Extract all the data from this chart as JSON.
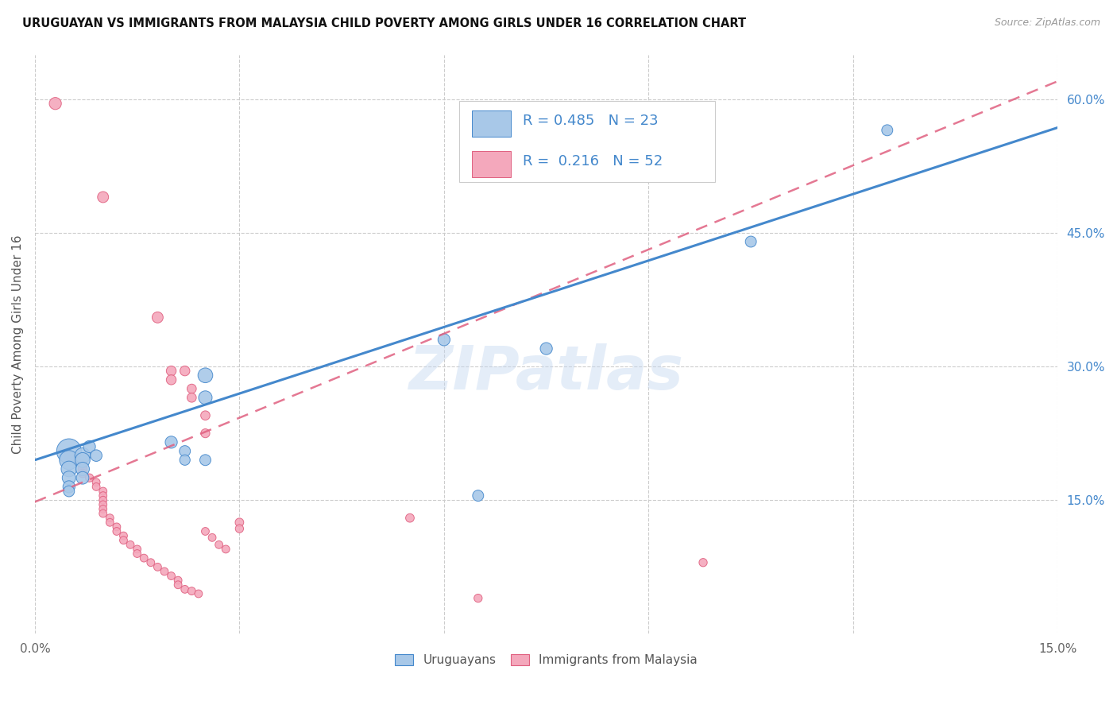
{
  "title": "URUGUAYAN VS IMMIGRANTS FROM MALAYSIA CHILD POVERTY AMONG GIRLS UNDER 16 CORRELATION CHART",
  "source": "Source: ZipAtlas.com",
  "ylabel": "Child Poverty Among Girls Under 16",
  "x_min": 0.0,
  "x_max": 0.15,
  "y_min": 0.0,
  "y_max": 0.65,
  "x_tick_positions": [
    0.0,
    0.03,
    0.06,
    0.09,
    0.12,
    0.15
  ],
  "x_tick_labels": [
    "0.0%",
    "",
    "",
    "",
    "",
    "15.0%"
  ],
  "y_tick_labels_right": [
    "60.0%",
    "45.0%",
    "30.0%",
    "15.0%"
  ],
  "y_ticks_right": [
    0.6,
    0.45,
    0.3,
    0.15
  ],
  "legend_label_blue": "Uruguayans",
  "legend_label_pink": "Immigrants from Malaysia",
  "R_blue": 0.485,
  "N_blue": 23,
  "R_pink": 0.216,
  "N_pink": 52,
  "blue_color": "#a8c8e8",
  "pink_color": "#f4a8bc",
  "blue_line_color": "#4488cc",
  "pink_line_color": "#e06080",
  "text_color_blue": "#4488cc",
  "watermark": "ZIPatlas",
  "blue_points": [
    [
      0.005,
      0.205
    ],
    [
      0.005,
      0.195
    ],
    [
      0.005,
      0.185
    ],
    [
      0.005,
      0.175
    ],
    [
      0.005,
      0.165
    ],
    [
      0.005,
      0.16
    ],
    [
      0.007,
      0.2
    ],
    [
      0.007,
      0.195
    ],
    [
      0.007,
      0.185
    ],
    [
      0.007,
      0.175
    ],
    [
      0.008,
      0.21
    ],
    [
      0.009,
      0.2
    ],
    [
      0.02,
      0.215
    ],
    [
      0.022,
      0.205
    ],
    [
      0.022,
      0.195
    ],
    [
      0.025,
      0.29
    ],
    [
      0.025,
      0.265
    ],
    [
      0.025,
      0.195
    ],
    [
      0.06,
      0.33
    ],
    [
      0.065,
      0.155
    ],
    [
      0.075,
      0.32
    ],
    [
      0.105,
      0.44
    ],
    [
      0.125,
      0.565
    ]
  ],
  "blue_sizes": [
    500,
    300,
    200,
    150,
    120,
    100,
    200,
    180,
    150,
    130,
    120,
    110,
    120,
    100,
    90,
    180,
    150,
    100,
    120,
    100,
    120,
    100,
    100
  ],
  "pink_points": [
    [
      0.003,
      0.595
    ],
    [
      0.01,
      0.49
    ],
    [
      0.018,
      0.355
    ],
    [
      0.02,
      0.295
    ],
    [
      0.02,
      0.285
    ],
    [
      0.022,
      0.295
    ],
    [
      0.023,
      0.275
    ],
    [
      0.023,
      0.265
    ],
    [
      0.025,
      0.245
    ],
    [
      0.025,
      0.225
    ],
    [
      0.005,
      0.2
    ],
    [
      0.006,
      0.195
    ],
    [
      0.007,
      0.19
    ],
    [
      0.007,
      0.185
    ],
    [
      0.007,
      0.18
    ],
    [
      0.008,
      0.175
    ],
    [
      0.009,
      0.17
    ],
    [
      0.009,
      0.165
    ],
    [
      0.01,
      0.16
    ],
    [
      0.01,
      0.155
    ],
    [
      0.01,
      0.15
    ],
    [
      0.01,
      0.145
    ],
    [
      0.01,
      0.14
    ],
    [
      0.01,
      0.135
    ],
    [
      0.011,
      0.13
    ],
    [
      0.011,
      0.125
    ],
    [
      0.012,
      0.12
    ],
    [
      0.012,
      0.115
    ],
    [
      0.013,
      0.11
    ],
    [
      0.013,
      0.105
    ],
    [
      0.014,
      0.1
    ],
    [
      0.015,
      0.095
    ],
    [
      0.015,
      0.09
    ],
    [
      0.016,
      0.085
    ],
    [
      0.017,
      0.08
    ],
    [
      0.018,
      0.075
    ],
    [
      0.019,
      0.07
    ],
    [
      0.02,
      0.065
    ],
    [
      0.021,
      0.06
    ],
    [
      0.021,
      0.055
    ],
    [
      0.022,
      0.05
    ],
    [
      0.023,
      0.048
    ],
    [
      0.024,
      0.045
    ],
    [
      0.025,
      0.115
    ],
    [
      0.026,
      0.108
    ],
    [
      0.027,
      0.1
    ],
    [
      0.028,
      0.095
    ],
    [
      0.03,
      0.125
    ],
    [
      0.03,
      0.118
    ],
    [
      0.055,
      0.13
    ],
    [
      0.065,
      0.04
    ],
    [
      0.098,
      0.08
    ]
  ],
  "pink_sizes": [
    120,
    100,
    100,
    80,
    80,
    80,
    70,
    70,
    70,
    65,
    80,
    75,
    70,
    65,
    60,
    55,
    50,
    50,
    50,
    50,
    50,
    50,
    50,
    50,
    50,
    50,
    50,
    50,
    50,
    50,
    50,
    50,
    50,
    50,
    50,
    50,
    50,
    50,
    50,
    50,
    50,
    50,
    50,
    50,
    50,
    50,
    50,
    60,
    55,
    60,
    55,
    55
  ],
  "blue_line_x": [
    0.0,
    0.15
  ],
  "blue_line_y": [
    0.195,
    0.568
  ],
  "pink_line_x": [
    0.0,
    0.15
  ],
  "pink_line_y": [
    0.148,
    0.62
  ],
  "background_color": "#ffffff",
  "grid_color": "#cccccc"
}
